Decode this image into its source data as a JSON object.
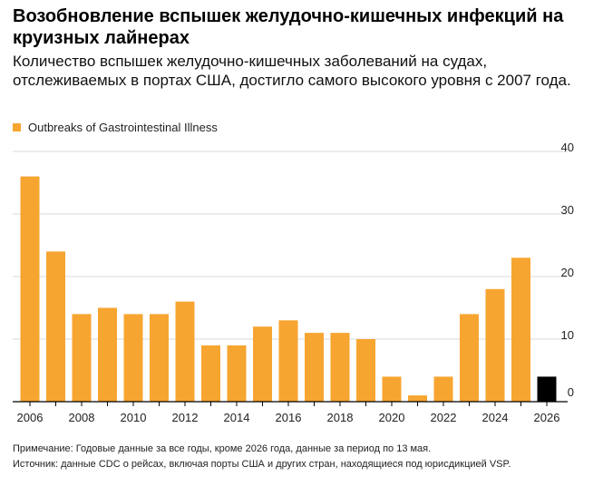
{
  "title": "Возобновление вспышек желудочно-кишечных инфекций на круизных лайнерах",
  "subtitle": "Количество вспышек желудочно-кишечных заболеваний на судах, отслеживаемых в портах США, достигло самого высокого уровня с 2007 года.",
  "legend_label": "Outbreaks of Gastrointestinal Illness",
  "note": "Примечание: Годовые данные за все годы, кроме 2026 года, данные за период по 13 мая.",
  "source": "Источник: данные CDC о рейсах, включая порты США и других стран, находящиеся под юрисдикцией VSP.",
  "colors": {
    "bar": "#f7a531",
    "highlight": "#000000",
    "grid": "#d9d9d9",
    "axis": "#000000"
  },
  "chart_data": {
    "type": "bar",
    "x": [
      2006,
      2007,
      2008,
      2009,
      2010,
      2011,
      2012,
      2013,
      2014,
      2015,
      2016,
      2017,
      2018,
      2019,
      2020,
      2021,
      2022,
      2023,
      2024,
      2025,
      2026
    ],
    "series": [
      {
        "name": "Outbreaks of Gastrointestinal Illness",
        "values": [
          36,
          24,
          14,
          15,
          14,
          14,
          16,
          9,
          9,
          12,
          13,
          11,
          11,
          10,
          4,
          1,
          4,
          14,
          18,
          23,
          4
        ]
      }
    ],
    "highlight_x": 2026,
    "x_tick_labels": [
      "2006",
      "2008",
      "2010",
      "2012",
      "2014",
      "2016",
      "2018",
      "2020",
      "2022",
      "2024",
      "2026"
    ],
    "y_tick_labels": [
      "0",
      "10",
      "20",
      "30",
      "40"
    ],
    "ylim": [
      0,
      40
    ],
    "yaxis_side": "right",
    "grid": true
  }
}
